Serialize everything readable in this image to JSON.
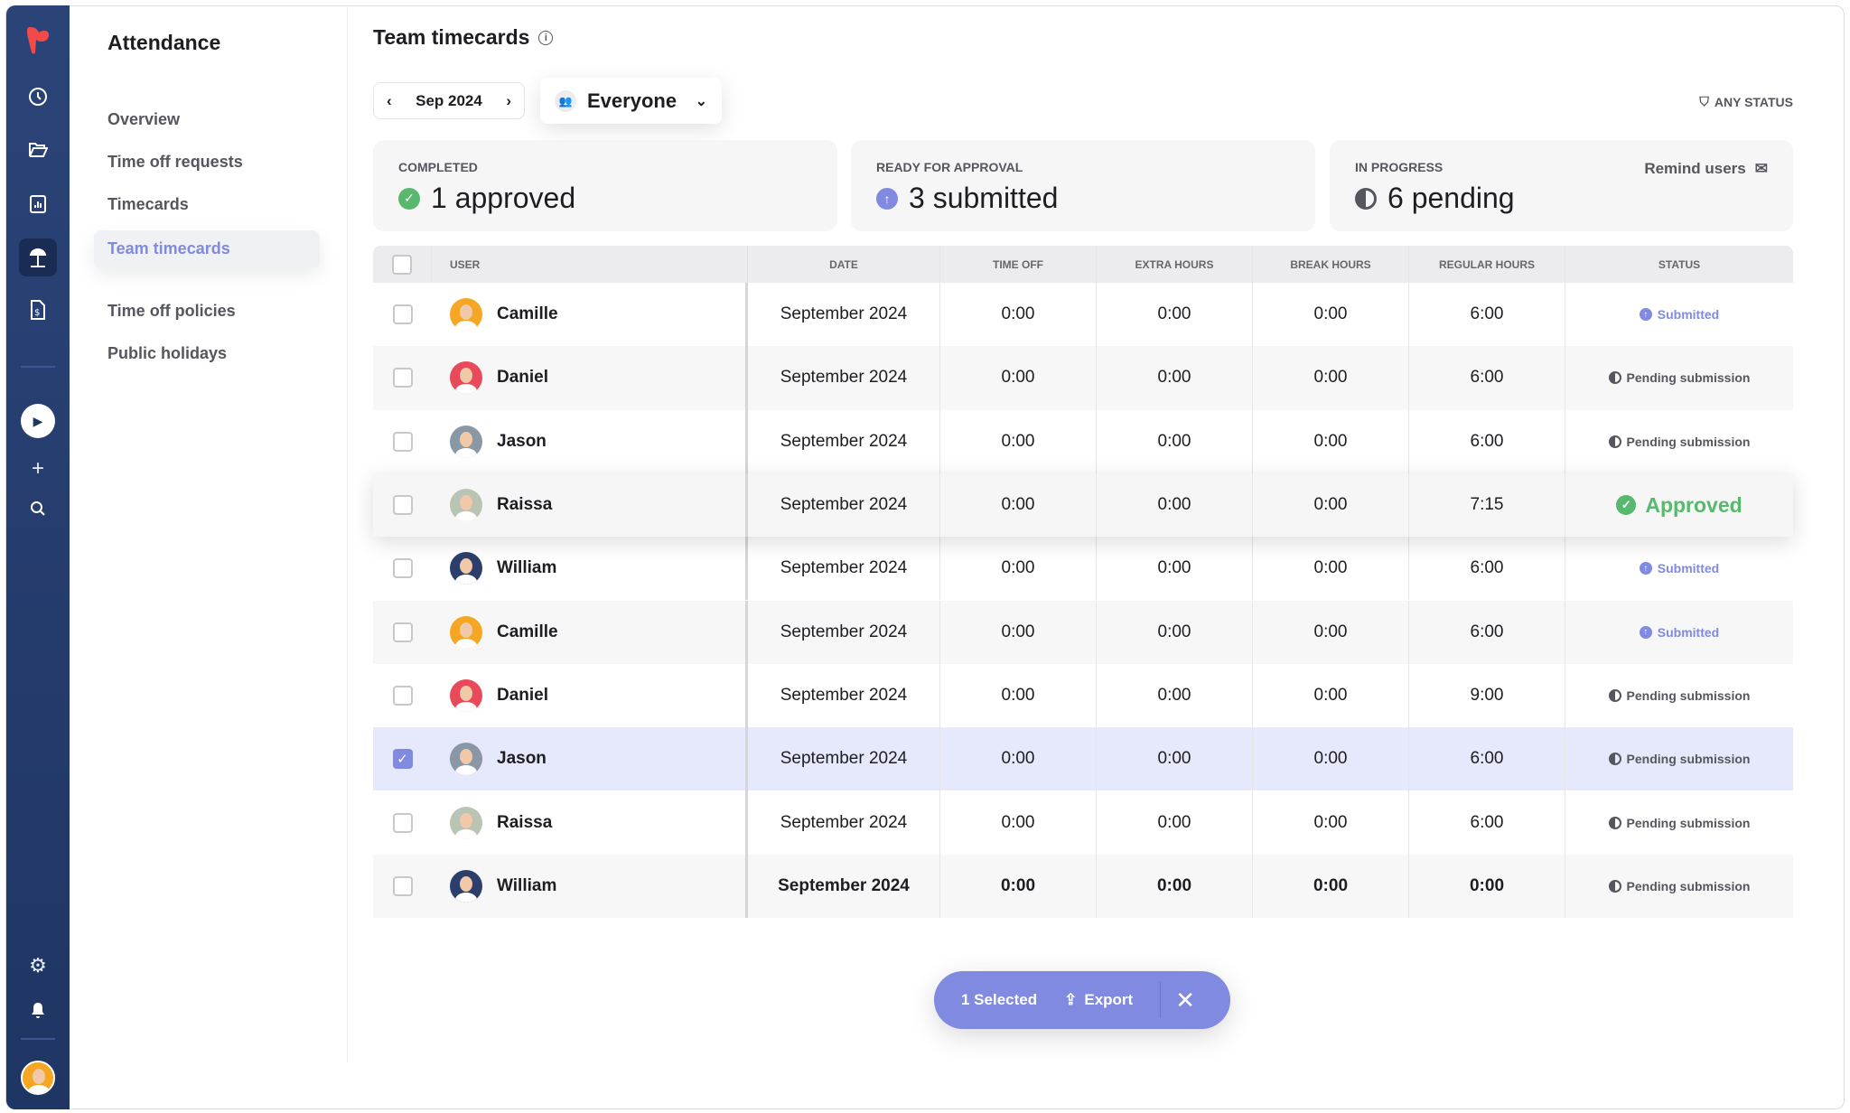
{
  "sidebar": {
    "icons": [
      "logo",
      "clock-icon",
      "folder-icon",
      "report-icon",
      "umbrella-icon",
      "invoice-icon",
      "play-icon",
      "plus-icon",
      "search-icon",
      "gear-icon",
      "bell-icon",
      "avatar"
    ]
  },
  "nav": {
    "title": "Attendance",
    "items": [
      {
        "label": "Overview"
      },
      {
        "label": "Time off requests"
      },
      {
        "label": "Timecards"
      },
      {
        "label": "Team timecards",
        "active": true
      },
      {
        "label": "Time off policies"
      },
      {
        "label": "Public holidays"
      }
    ]
  },
  "page": {
    "title": "Team timecards",
    "period": "Sep 2024",
    "group": "Everyone",
    "filter": "ANY STATUS"
  },
  "cards": [
    {
      "label": "COMPLETED",
      "value": "1 approved",
      "color": "#58b86d"
    },
    {
      "label": "READY FOR APPROVAL",
      "value": "3 submitted",
      "color": "#7f8ae0"
    },
    {
      "label": "IN PROGRESS",
      "value": "6 pending",
      "action": "Remind users"
    }
  ],
  "table": {
    "columns": [
      "USER",
      "DATE",
      "TIME OFF",
      "EXTRA HOURS",
      "BREAK HOURS",
      "REGULAR HOURS",
      "STATUS"
    ],
    "rows": [
      {
        "user": "Camille",
        "date": "September 2024",
        "time_off": "0:00",
        "extra": "0:00",
        "break": "0:00",
        "regular": "6:00",
        "status": "Submitted",
        "checked": false,
        "avatar": "#f5a623"
      },
      {
        "user": "Daniel",
        "date": "September 2024",
        "time_off": "0:00",
        "extra": "0:00",
        "break": "0:00",
        "regular": "6:00",
        "status": "Pending submission",
        "checked": false,
        "avatar": "#e84a5a"
      },
      {
        "user": "Jason",
        "date": "September 2024",
        "time_off": "0:00",
        "extra": "0:00",
        "break": "0:00",
        "regular": "6:00",
        "status": "Pending submission",
        "checked": false,
        "avatar": "#8a98a6"
      },
      {
        "user": "Raissa",
        "date": "September 2024",
        "time_off": "0:00",
        "extra": "0:00",
        "break": "0:00",
        "regular": "7:15",
        "status": "Approved",
        "checked": false,
        "avatar": "#b9c4b4"
      },
      {
        "user": "William",
        "date": "September 2024",
        "time_off": "0:00",
        "extra": "0:00",
        "break": "0:00",
        "regular": "6:00",
        "status": "Submitted",
        "checked": false,
        "avatar": "#2c3e6b"
      },
      {
        "user": "Camille",
        "date": "September 2024",
        "time_off": "0:00",
        "extra": "0:00",
        "break": "0:00",
        "regular": "6:00",
        "status": "Submitted",
        "checked": false,
        "avatar": "#f5a623"
      },
      {
        "user": "Daniel",
        "date": "September 2024",
        "time_off": "0:00",
        "extra": "0:00",
        "break": "0:00",
        "regular": "9:00",
        "status": "Pending submission",
        "checked": false,
        "avatar": "#e84a5a"
      },
      {
        "user": "Jason",
        "date": "September 2024",
        "time_off": "0:00",
        "extra": "0:00",
        "break": "0:00",
        "regular": "6:00",
        "status": "Pending submission",
        "checked": true,
        "avatar": "#8a98a6"
      },
      {
        "user": "Raissa",
        "date": "September 2024",
        "time_off": "0:00",
        "extra": "0:00",
        "break": "0:00",
        "regular": "6:00",
        "status": "Pending submission",
        "checked": false,
        "avatar": "#b9c4b4"
      },
      {
        "user": "William",
        "date": "September 2024",
        "time_off": "0:00",
        "extra": "0:00",
        "break": "0:00",
        "regular": "0:00",
        "status": "Pending submission",
        "checked": false,
        "avatar": "#2c3e6b"
      }
    ]
  },
  "selection_bar": {
    "count": "1 Selected",
    "export": "Export",
    "accent": "#7f8ae0"
  }
}
